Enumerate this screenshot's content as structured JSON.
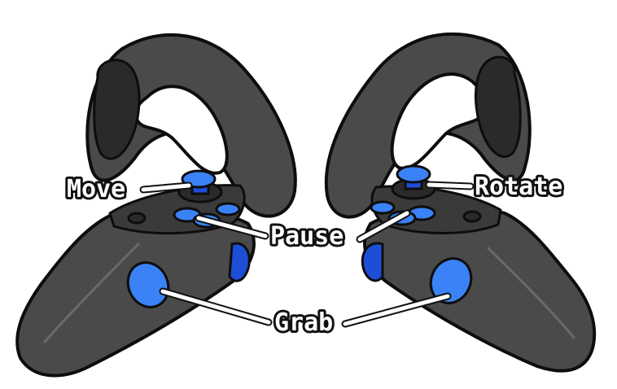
{
  "labels": {
    "move": "Move",
    "rotate": "Rotate",
    "pause": "Pause",
    "grab": "Grab"
  },
  "colors": {
    "controller_body": "#4a4a4a",
    "controller_outline": "#0d0d0d",
    "button_blue": "#3b82f6",
    "label_fill": "#ffffff"
  }
}
